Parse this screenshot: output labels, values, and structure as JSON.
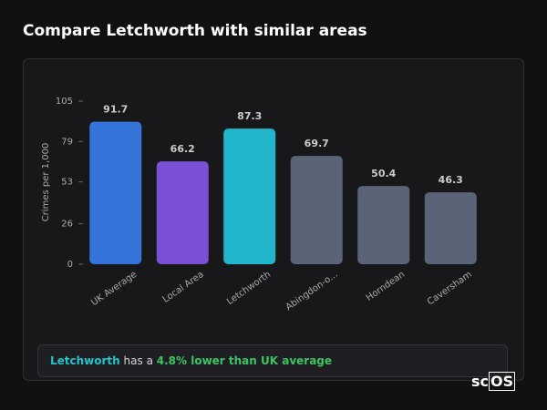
{
  "page_title": "Compare Letchworth with similar areas",
  "chart_data": {
    "type": "bar",
    "y_label": "Crimes per 1,000",
    "categories": [
      "UK Average",
      "Local Area",
      "Letchworth",
      "Abingdon-o...",
      "Horndean",
      "Caversham"
    ],
    "values": [
      91.7,
      66.2,
      87.3,
      69.7,
      50.4,
      46.3
    ],
    "colors": [
      "#3574d8",
      "#7a50d4",
      "#21b6cc",
      "#5a6476",
      "#5a6476",
      "#5a6476"
    ],
    "ylim": [
      0,
      105
    ],
    "yticks": [
      0,
      26,
      53,
      79,
      105
    ]
  },
  "summary": {
    "area": "Letchworth",
    "text": "has a",
    "highlight": "4.8% lower than UK average"
  },
  "logo": {
    "prefix": "sc",
    "boxed": "OS"
  }
}
